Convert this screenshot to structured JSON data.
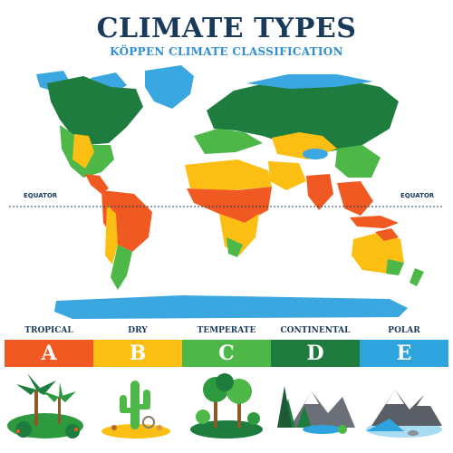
{
  "header": {
    "title": "CLIMATE TYPES",
    "subtitle": "KÖPPEN CLIMATE CLASSIFICATION"
  },
  "map": {
    "equator_left": "EQUATOR",
    "equator_right": "EQUATOR"
  },
  "legend": [
    {
      "name": "TROPICAL",
      "letter": "A",
      "color": "#f05a22"
    },
    {
      "name": "DRY",
      "letter": "B",
      "color": "#fbbf14"
    },
    {
      "name": "TEMPERATE",
      "letter": "C",
      "color": "#4db848"
    },
    {
      "name": "CONTINENTAL",
      "letter": "D",
      "color": "#1e7d3e"
    },
    {
      "name": "POLAR",
      "letter": "E",
      "color": "#2ea3de"
    }
  ],
  "colors": {
    "ocean_ice": "#3aa7e0",
    "title": "#1a3a5c"
  }
}
